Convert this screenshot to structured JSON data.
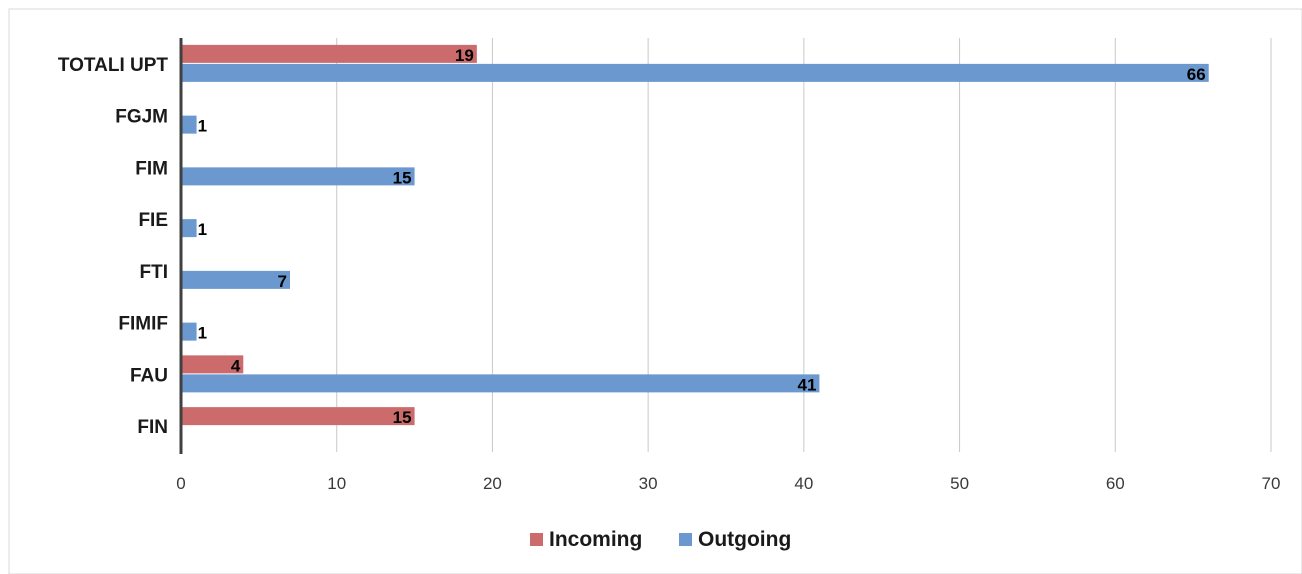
{
  "chart_data": {
    "type": "bar",
    "orientation": "horizontal",
    "categories": [
      "TOTALI UPT",
      "FGJM",
      "FIM",
      "FIE",
      "FTI",
      "FIMIF",
      "FAU",
      "FIN"
    ],
    "series": [
      {
        "name": "Incoming",
        "color": "#cb6b6b",
        "values": [
          19,
          null,
          null,
          null,
          null,
          null,
          4,
          15
        ]
      },
      {
        "name": "Outgoing",
        "color": "#6a98cf",
        "values": [
          66,
          1,
          15,
          1,
          7,
          1,
          41,
          null
        ]
      }
    ],
    "xlim": [
      0,
      70
    ],
    "xticks": [
      0,
      10,
      20,
      30,
      40,
      50,
      60,
      70
    ],
    "grid": "vertical",
    "legend": "bottom"
  }
}
